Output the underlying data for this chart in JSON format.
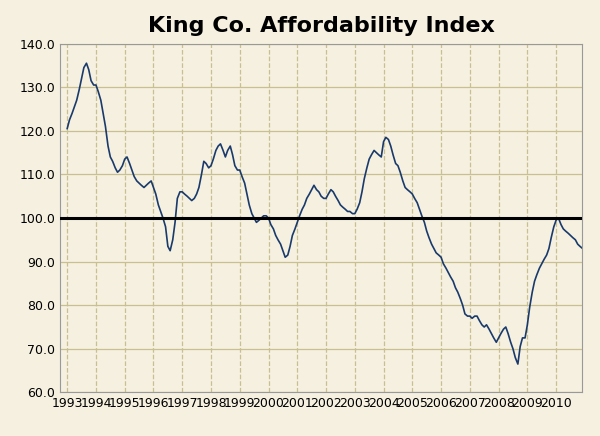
{
  "title": "King Co. Affordability Index",
  "background_color": "#f5f0e0",
  "line_color": "#1a3a6b",
  "reference_line_y": 100,
  "reference_line_color": "#000000",
  "ylim": [
    60.0,
    140.0
  ],
  "yticks": [
    60.0,
    70.0,
    80.0,
    90.0,
    100.0,
    110.0,
    120.0,
    130.0,
    140.0
  ],
  "xticks": [
    1993,
    1994,
    1995,
    1996,
    1997,
    1998,
    1999,
    2000,
    2001,
    2002,
    2003,
    2004,
    2005,
    2006,
    2007,
    2008,
    2009,
    2010
  ],
  "xlim_start": 1992.75,
  "xlim_end": 2010.9,
  "title_fontsize": 16,
  "tick_fontsize": 9,
  "grid_color_h": "#c8c090",
  "grid_color_v": "#c8c090",
  "series": [
    [
      1993.0,
      120.5
    ],
    [
      1993.08,
      122.5
    ],
    [
      1993.17,
      124.0
    ],
    [
      1993.25,
      125.5
    ],
    [
      1993.33,
      127.0
    ],
    [
      1993.42,
      129.5
    ],
    [
      1993.5,
      132.0
    ],
    [
      1993.58,
      134.5
    ],
    [
      1993.67,
      135.5
    ],
    [
      1993.75,
      134.0
    ],
    [
      1993.83,
      131.5
    ],
    [
      1993.92,
      130.5
    ],
    [
      1994.0,
      130.5
    ],
    [
      1994.08,
      129.0
    ],
    [
      1994.17,
      127.0
    ],
    [
      1994.25,
      124.0
    ],
    [
      1994.33,
      121.0
    ],
    [
      1994.42,
      116.5
    ],
    [
      1994.5,
      114.0
    ],
    [
      1994.58,
      113.0
    ],
    [
      1994.67,
      111.5
    ],
    [
      1994.75,
      110.5
    ],
    [
      1994.83,
      111.0
    ],
    [
      1994.92,
      112.0
    ],
    [
      1995.0,
      113.5
    ],
    [
      1995.08,
      114.0
    ],
    [
      1995.17,
      112.5
    ],
    [
      1995.25,
      111.0
    ],
    [
      1995.33,
      109.5
    ],
    [
      1995.42,
      108.5
    ],
    [
      1995.5,
      108.0
    ],
    [
      1995.58,
      107.5
    ],
    [
      1995.67,
      107.0
    ],
    [
      1995.75,
      107.5
    ],
    [
      1995.83,
      108.0
    ],
    [
      1995.92,
      108.5
    ],
    [
      1996.0,
      107.0
    ],
    [
      1996.08,
      105.5
    ],
    [
      1996.17,
      103.0
    ],
    [
      1996.25,
      101.5
    ],
    [
      1996.33,
      100.0
    ],
    [
      1996.42,
      98.0
    ],
    [
      1996.5,
      93.5
    ],
    [
      1996.58,
      92.5
    ],
    [
      1996.67,
      95.0
    ],
    [
      1996.75,
      99.0
    ],
    [
      1996.83,
      104.5
    ],
    [
      1996.92,
      106.0
    ],
    [
      1997.0,
      106.0
    ],
    [
      1997.08,
      105.5
    ],
    [
      1997.17,
      105.0
    ],
    [
      1997.25,
      104.5
    ],
    [
      1997.33,
      104.0
    ],
    [
      1997.42,
      104.5
    ],
    [
      1997.5,
      105.5
    ],
    [
      1997.58,
      107.0
    ],
    [
      1997.67,
      110.0
    ],
    [
      1997.75,
      113.0
    ],
    [
      1997.83,
      112.5
    ],
    [
      1997.92,
      111.5
    ],
    [
      1998.0,
      112.0
    ],
    [
      1998.08,
      113.5
    ],
    [
      1998.17,
      115.5
    ],
    [
      1998.25,
      116.5
    ],
    [
      1998.33,
      117.0
    ],
    [
      1998.42,
      115.5
    ],
    [
      1998.5,
      114.0
    ],
    [
      1998.58,
      115.5
    ],
    [
      1998.67,
      116.5
    ],
    [
      1998.75,
      114.5
    ],
    [
      1998.83,
      112.0
    ],
    [
      1998.92,
      111.0
    ],
    [
      1999.0,
      111.0
    ],
    [
      1999.08,
      109.5
    ],
    [
      1999.17,
      108.0
    ],
    [
      1999.25,
      105.5
    ],
    [
      1999.33,
      103.0
    ],
    [
      1999.42,
      101.0
    ],
    [
      1999.5,
      100.0
    ],
    [
      1999.58,
      99.0
    ],
    [
      1999.67,
      99.5
    ],
    [
      1999.75,
      100.0
    ],
    [
      1999.83,
      100.5
    ],
    [
      1999.92,
      100.5
    ],
    [
      2000.0,
      100.0
    ],
    [
      2000.08,
      98.5
    ],
    [
      2000.17,
      97.5
    ],
    [
      2000.25,
      96.0
    ],
    [
      2000.33,
      95.0
    ],
    [
      2000.42,
      94.0
    ],
    [
      2000.5,
      92.5
    ],
    [
      2000.58,
      91.0
    ],
    [
      2000.67,
      91.5
    ],
    [
      2000.75,
      93.5
    ],
    [
      2000.83,
      96.0
    ],
    [
      2000.92,
      97.5
    ],
    [
      2001.0,
      99.0
    ],
    [
      2001.08,
      100.5
    ],
    [
      2001.17,
      102.0
    ],
    [
      2001.25,
      103.0
    ],
    [
      2001.33,
      104.5
    ],
    [
      2001.42,
      105.5
    ],
    [
      2001.5,
      106.5
    ],
    [
      2001.58,
      107.5
    ],
    [
      2001.67,
      106.5
    ],
    [
      2001.75,
      106.0
    ],
    [
      2001.83,
      105.0
    ],
    [
      2001.92,
      104.5
    ],
    [
      2002.0,
      104.5
    ],
    [
      2002.08,
      105.5
    ],
    [
      2002.17,
      106.5
    ],
    [
      2002.25,
      106.0
    ],
    [
      2002.33,
      105.0
    ],
    [
      2002.42,
      104.0
    ],
    [
      2002.5,
      103.0
    ],
    [
      2002.58,
      102.5
    ],
    [
      2002.67,
      102.0
    ],
    [
      2002.75,
      101.5
    ],
    [
      2002.83,
      101.5
    ],
    [
      2002.92,
      101.0
    ],
    [
      2003.0,
      101.0
    ],
    [
      2003.08,
      102.0
    ],
    [
      2003.17,
      103.5
    ],
    [
      2003.25,
      106.0
    ],
    [
      2003.33,
      109.0
    ],
    [
      2003.42,
      111.5
    ],
    [
      2003.5,
      113.5
    ],
    [
      2003.58,
      114.5
    ],
    [
      2003.67,
      115.5
    ],
    [
      2003.75,
      115.0
    ],
    [
      2003.83,
      114.5
    ],
    [
      2003.92,
      114.0
    ],
    [
      2004.0,
      117.5
    ],
    [
      2004.08,
      118.5
    ],
    [
      2004.17,
      118.0
    ],
    [
      2004.25,
      116.5
    ],
    [
      2004.33,
      114.5
    ],
    [
      2004.42,
      112.5
    ],
    [
      2004.5,
      112.0
    ],
    [
      2004.58,
      110.5
    ],
    [
      2004.67,
      108.5
    ],
    [
      2004.75,
      107.0
    ],
    [
      2004.83,
      106.5
    ],
    [
      2004.92,
      106.0
    ],
    [
      2005.0,
      105.5
    ],
    [
      2005.08,
      104.5
    ],
    [
      2005.17,
      103.5
    ],
    [
      2005.25,
      102.0
    ],
    [
      2005.33,
      100.5
    ],
    [
      2005.42,
      99.0
    ],
    [
      2005.5,
      97.0
    ],
    [
      2005.58,
      95.5
    ],
    [
      2005.67,
      94.0
    ],
    [
      2005.75,
      93.0
    ],
    [
      2005.83,
      92.0
    ],
    [
      2005.92,
      91.5
    ],
    [
      2006.0,
      91.0
    ],
    [
      2006.08,
      89.5
    ],
    [
      2006.17,
      88.5
    ],
    [
      2006.25,
      87.5
    ],
    [
      2006.33,
      86.5
    ],
    [
      2006.42,
      85.5
    ],
    [
      2006.5,
      84.0
    ],
    [
      2006.58,
      83.0
    ],
    [
      2006.67,
      81.5
    ],
    [
      2006.75,
      80.0
    ],
    [
      2006.83,
      78.0
    ],
    [
      2006.92,
      77.5
    ],
    [
      2007.0,
      77.5
    ],
    [
      2007.08,
      77.0
    ],
    [
      2007.17,
      77.5
    ],
    [
      2007.25,
      77.5
    ],
    [
      2007.33,
      76.5
    ],
    [
      2007.42,
      75.5
    ],
    [
      2007.5,
      75.0
    ],
    [
      2007.58,
      75.5
    ],
    [
      2007.67,
      74.5
    ],
    [
      2007.75,
      73.5
    ],
    [
      2007.83,
      72.5
    ],
    [
      2007.92,
      71.5
    ],
    [
      2008.0,
      72.5
    ],
    [
      2008.08,
      73.5
    ],
    [
      2008.17,
      74.5
    ],
    [
      2008.25,
      75.0
    ],
    [
      2008.33,
      73.5
    ],
    [
      2008.42,
      71.5
    ],
    [
      2008.5,
      70.0
    ],
    [
      2008.58,
      68.0
    ],
    [
      2008.67,
      66.5
    ],
    [
      2008.75,
      70.5
    ],
    [
      2008.83,
      72.5
    ],
    [
      2008.92,
      72.5
    ],
    [
      2009.0,
      75.5
    ],
    [
      2009.08,
      79.5
    ],
    [
      2009.17,
      83.0
    ],
    [
      2009.25,
      85.5
    ],
    [
      2009.33,
      87.0
    ],
    [
      2009.42,
      88.5
    ],
    [
      2009.5,
      89.5
    ],
    [
      2009.58,
      90.5
    ],
    [
      2009.67,
      91.5
    ],
    [
      2009.75,
      93.0
    ],
    [
      2009.83,
      95.5
    ],
    [
      2009.92,
      98.0
    ],
    [
      2010.0,
      99.5
    ],
    [
      2010.08,
      100.0
    ],
    [
      2010.17,
      98.5
    ],
    [
      2010.25,
      97.5
    ],
    [
      2010.33,
      97.0
    ],
    [
      2010.42,
      96.5
    ],
    [
      2010.5,
      96.0
    ],
    [
      2010.58,
      95.5
    ],
    [
      2010.67,
      95.0
    ],
    [
      2010.75,
      94.0
    ],
    [
      2010.83,
      93.5
    ],
    [
      2010.92,
      93.0
    ]
  ]
}
